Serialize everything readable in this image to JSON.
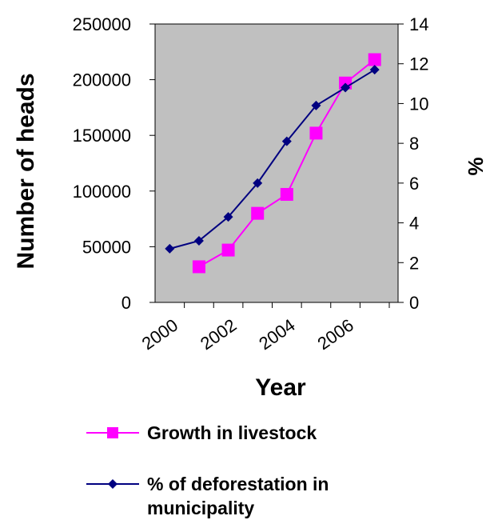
{
  "chart_data": {
    "type": "line",
    "title": "",
    "xlabel": "Year",
    "ylabel": "Number of heads",
    "y2label": "%",
    "x_tick_labels": [
      "2000",
      "2002",
      "2004",
      "2006"
    ],
    "ylim": [
      0,
      250000
    ],
    "y_ticks": [
      "0",
      "50000",
      "100000",
      "150000",
      "200000",
      "250000"
    ],
    "y2lim": [
      0,
      14
    ],
    "y2_ticks": [
      "0",
      "2",
      "4",
      "6",
      "8",
      "10",
      "12",
      "14"
    ],
    "plot_background": "#c0c0c0",
    "grid": false,
    "legend_position": "bottom",
    "series": [
      {
        "name": "Growth in livestock",
        "axis": "left",
        "color": "#ff00ff",
        "marker": "square",
        "x": [
          2001,
          2002,
          2003,
          2004,
          2005,
          2006,
          2007
        ],
        "values": [
          32000,
          47000,
          80000,
          97000,
          152000,
          197000,
          218000
        ]
      },
      {
        "name": "% of deforestation in municipality",
        "axis": "right",
        "color": "#000080",
        "marker": "diamond",
        "x": [
          2000,
          2001,
          2002,
          2003,
          2004,
          2005,
          2006,
          2007
        ],
        "values": [
          2.7,
          3.1,
          4.3,
          6.0,
          8.1,
          9.9,
          10.8,
          11.7
        ]
      }
    ]
  }
}
